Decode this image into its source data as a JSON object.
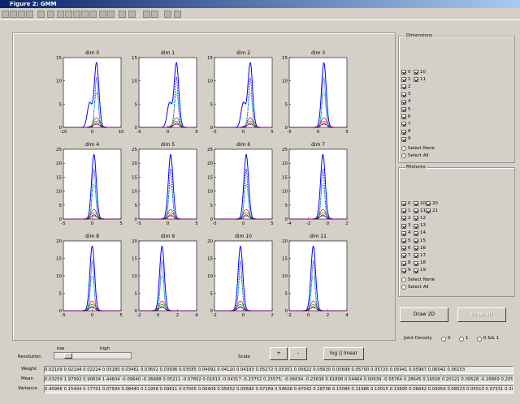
{
  "window": {
    "title": "Figure 2: GMM"
  },
  "plots": [
    {
      "title": "dim 0",
      "xlim": [
        -10,
        10
      ],
      "ylim": [
        0,
        15
      ],
      "xticks": [
        -10,
        0,
        10
      ],
      "yticks": [
        0,
        5,
        10,
        15
      ]
    },
    {
      "title": "dim 1",
      "xlim": [
        -5,
        5
      ],
      "ylim": [
        0,
        15
      ],
      "xticks": [
        -5,
        0,
        5
      ],
      "yticks": [
        0,
        5,
        10,
        15
      ]
    },
    {
      "title": "dim 2",
      "xlim": [
        -5,
        5
      ],
      "ylim": [
        0,
        15
      ],
      "xticks": [
        -5,
        0,
        5
      ],
      "yticks": [
        0,
        5,
        10,
        15
      ]
    },
    {
      "title": "dim 3",
      "xlim": [
        -5,
        5
      ],
      "ylim": [
        0,
        15
      ],
      "xticks": [
        -5,
        0,
        5
      ],
      "yticks": [
        0,
        5,
        10,
        15
      ]
    },
    {
      "title": "dim 4",
      "xlim": [
        -5,
        5
      ],
      "ylim": [
        0,
        25
      ],
      "xticks": [
        -5,
        0,
        5
      ],
      "yticks": [
        0,
        5,
        10,
        15,
        20,
        25
      ]
    },
    {
      "title": "dim 5",
      "xlim": [
        -5,
        5
      ],
      "ylim": [
        0,
        25
      ],
      "xticks": [
        -5,
        0,
        5
      ],
      "yticks": [
        0,
        5,
        10,
        15,
        20,
        25
      ]
    },
    {
      "title": "dim 6",
      "xlim": [
        -5,
        5
      ],
      "ylim": [
        0,
        25
      ],
      "xticks": [
        -5,
        0,
        5
      ],
      "yticks": [
        0,
        5,
        10,
        15,
        20,
        25
      ]
    },
    {
      "title": "dim 7",
      "xlim": [
        -4,
        2
      ],
      "ylim": [
        0,
        25
      ],
      "xticks": [
        -4,
        -2,
        0,
        2
      ],
      "yticks": [
        0,
        5,
        10,
        15,
        20,
        25
      ]
    },
    {
      "title": "dim 8",
      "xlim": [
        -5,
        5
      ],
      "ylim": [
        0,
        20
      ],
      "xticks": [
        -5,
        0,
        5
      ],
      "yticks": [
        0,
        5,
        10,
        15,
        20
      ]
    },
    {
      "title": "dim 9",
      "xlim": [
        -2,
        4
      ],
      "ylim": [
        0,
        20
      ],
      "xticks": [
        -2,
        0,
        2,
        4
      ],
      "yticks": [
        0,
        5,
        10,
        15,
        20
      ]
    },
    {
      "title": "dim 10",
      "xlim": [
        -2,
        2
      ],
      "ylim": [
        0,
        20
      ],
      "xticks": [
        -2,
        0,
        2
      ],
      "yticks": [
        0,
        5,
        10,
        15,
        20
      ]
    },
    {
      "title": "dim 11",
      "xlim": [
        -2,
        4
      ],
      "ylim": [
        0,
        20
      ],
      "xticks": [
        -2,
        0,
        2,
        4
      ],
      "yticks": [
        0,
        5,
        10,
        15,
        20
      ]
    }
  ],
  "dimensions": {
    "title": "Dimensions",
    "items": [
      "0",
      "1",
      "2",
      "3",
      "4",
      "5",
      "6",
      "7",
      "8",
      "9",
      "10",
      "11"
    ],
    "select_none": "Select None",
    "select_all": "Select All"
  },
  "mixtures": {
    "title": "Mixtures",
    "items": [
      "0",
      "1",
      "2",
      "3",
      "4",
      "5",
      "6",
      "7",
      "8",
      "9",
      "10",
      "11",
      "12",
      "13",
      "14",
      "15",
      "16",
      "17",
      "18",
      "19",
      "20",
      "21"
    ],
    "select_none": "Select None",
    "select_all": "Select All"
  },
  "buttons": {
    "draw2d": "Draw 2D",
    "draw3d": "Draw 3D",
    "plus": "+",
    "minus": "-",
    "log": "log || linear"
  },
  "joint_density": {
    "label": "Joint Density",
    "options": [
      "0",
      "1",
      "0 && 1"
    ]
  },
  "resolution": {
    "label": "Resolution",
    "low": "low",
    "high": "high"
  },
  "scale": "Scale",
  "fields": [
    {
      "label": "Weight",
      "value": "0.02109 0.02194 0.02224 0.03180 0.03461 0.03652 0.03936 0.03585 0.04092 0.04120 0.04193 0.05272 0.05301 0.05622 0.05630 0.05698 0.05700 0.05720 0.05941 0.05967 0.06042 0.06153"
    },
    {
      "label": "Mean",
      "value": "0.03259 1.97992 0.90634 1.44604 -0.09640 -0.36688 0.05211 -0.07892 0.01613 -0.04317 -0.23752 0.25575; -0.06634 -0.23636 0.61808 0.54464 0.00639 -0.58764 0.28645 0.16506 0.20121 0.09528 -0.26869 0.20500; -2.96578 0.57555 1.1"
    },
    {
      "label": "Variance",
      "value": "0.40966 0.15494 0.17701 0.07584 0.08440 0.11958 0.09611 0.07005 0.06409 0.05652 0.05690 0.07269 0.54608 0.47042 0.28736 0.15086 0.11986 0.10015 0.13695 0.06682 0.09059 0.08523 0.05510 0.07331 0.36034 0.37453 0.34392 0.1"
    }
  ]
}
